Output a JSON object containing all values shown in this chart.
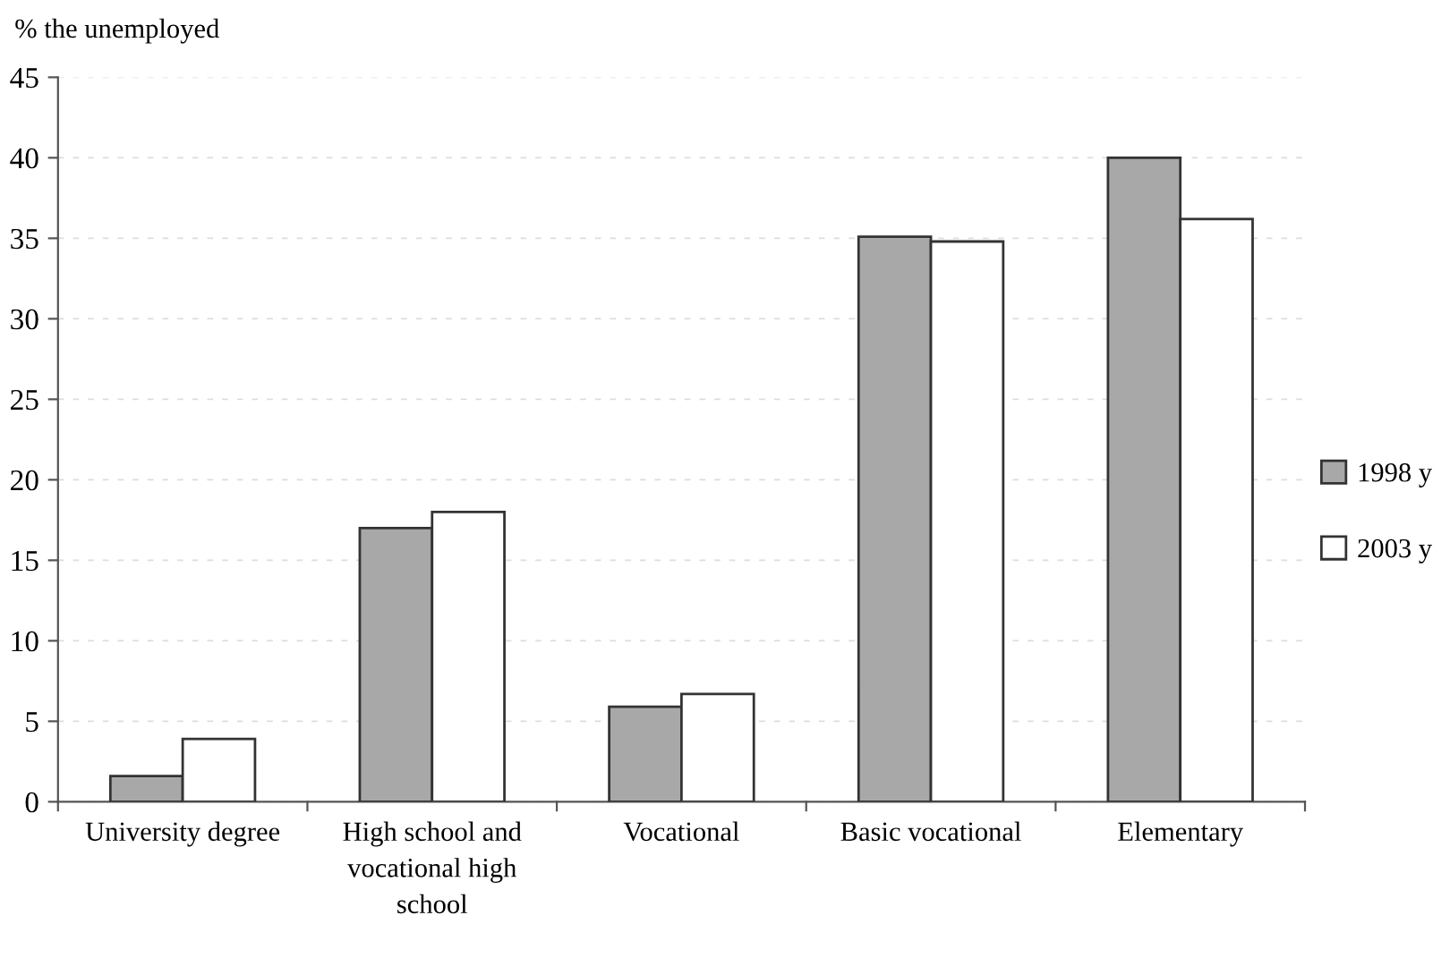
{
  "chart_data": {
    "type": "bar",
    "ylabel": "% the unemployed",
    "categories": [
      "University degree",
      "High school and vocational high school",
      "Vocational",
      "Basic vocational",
      "Elementary"
    ],
    "series": [
      {
        "name": "1998 y",
        "color": "#a8a8a8",
        "values": [
          1.6,
          17.0,
          5.9,
          35.1,
          40.0
        ]
      },
      {
        "name": "2003 y",
        "color": "#ffffff",
        "values": [
          3.9,
          18.0,
          6.7,
          34.8,
          36.2
        ]
      }
    ],
    "ylim": [
      0,
      45
    ],
    "yticks": [
      0,
      5,
      10,
      15,
      20,
      25,
      30,
      35,
      40,
      45
    ],
    "grid": "y",
    "legend": "right"
  }
}
